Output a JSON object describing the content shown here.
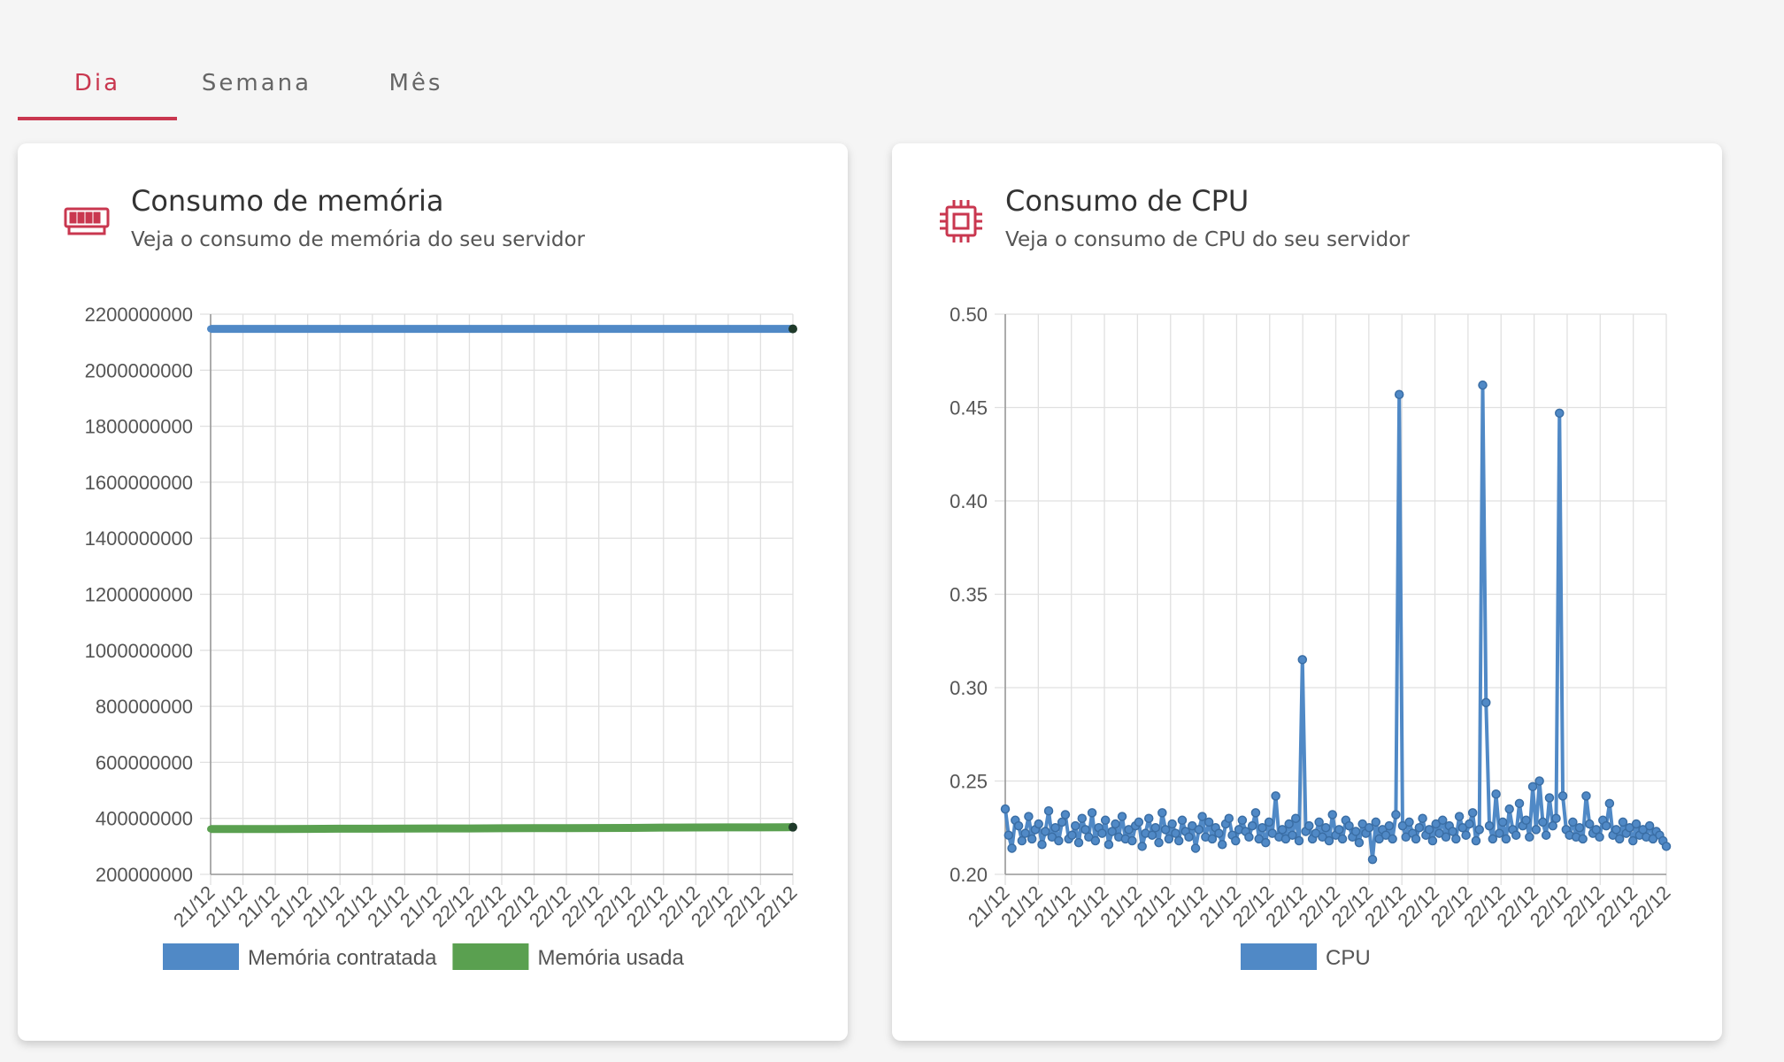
{
  "tabs": [
    {
      "label": "Dia",
      "active": true
    },
    {
      "label": "Semana",
      "active": false
    },
    {
      "label": "Mês",
      "active": false
    }
  ],
  "accent_color": "#c9374f",
  "memory_card": {
    "icon": "memory-ram-icon",
    "title": "Consumo de memória",
    "subtitle": "Veja o consumo de memória do seu servidor"
  },
  "cpu_card": {
    "icon": "cpu-chip-icon",
    "title": "Consumo de CPU",
    "subtitle": "Veja o consumo de CPU do seu servidor"
  },
  "chart_data": [
    {
      "type": "line",
      "title": "",
      "xlabel": "",
      "ylabel": "",
      "ylim": [
        200000000,
        2200000000
      ],
      "yticks": [
        200000000,
        400000000,
        600000000,
        800000000,
        1000000000,
        1200000000,
        1400000000,
        1600000000,
        1800000000,
        2000000000,
        2200000000
      ],
      "x_tick_labels": [
        "21/12",
        "21/12",
        "21/12",
        "21/12",
        "21/12",
        "21/12",
        "21/12",
        "21/12",
        "22/12",
        "22/12",
        "22/12",
        "22/12",
        "22/12",
        "22/12",
        "22/12",
        "22/12",
        "22/12",
        "22/12",
        "22/12"
      ],
      "grid": true,
      "legend": "bottom",
      "series": [
        {
          "name": "Memória contratada",
          "color": "#5089c6",
          "values": [
            2147483648,
            2147483648,
            2147483648,
            2147483648,
            2147483648,
            2147483648,
            2147483648,
            2147483648,
            2147483648,
            2147483648,
            2147483648,
            2147483648,
            2147483648,
            2147483648,
            2147483648,
            2147483648,
            2147483648,
            2147483648,
            2147483648
          ]
        },
        {
          "name": "Memória usada",
          "color": "#5aa050",
          "values": [
            362000000,
            362000000,
            362000000,
            362500000,
            363000000,
            363000000,
            363500000,
            364000000,
            364000000,
            364500000,
            365000000,
            365000000,
            365500000,
            366000000,
            367000000,
            367500000,
            368000000,
            368000000,
            368500000
          ]
        }
      ]
    },
    {
      "type": "line",
      "title": "",
      "xlabel": "",
      "ylabel": "",
      "ylim": [
        0.2,
        0.5
      ],
      "yticks": [
        0.2,
        0.25,
        0.3,
        0.35,
        0.4,
        0.45,
        0.5
      ],
      "x_tick_labels": [
        "21/12",
        "21/12",
        "21/12",
        "21/12",
        "21/12",
        "21/12",
        "21/12",
        "21/12",
        "22/12",
        "22/12",
        "22/12",
        "22/12",
        "22/12",
        "22/12",
        "22/12",
        "22/12",
        "22/12",
        "22/12",
        "22/12",
        "22/12",
        "22/12"
      ],
      "grid": true,
      "legend": "bottom",
      "series": [
        {
          "name": "CPU",
          "color": "#5089c6",
          "values": [
            0.235,
            0.221,
            0.214,
            0.229,
            0.226,
            0.218,
            0.222,
            0.231,
            0.219,
            0.224,
            0.227,
            0.216,
            0.223,
            0.234,
            0.22,
            0.225,
            0.218,
            0.228,
            0.232,
            0.219,
            0.221,
            0.226,
            0.217,
            0.23,
            0.224,
            0.22,
            0.233,
            0.218,
            0.225,
            0.222,
            0.229,
            0.216,
            0.223,
            0.227,
            0.22,
            0.231,
            0.219,
            0.224,
            0.218,
            0.226,
            0.228,
            0.215,
            0.222,
            0.23,
            0.221,
            0.225,
            0.217,
            0.233,
            0.224,
            0.219,
            0.227,
            0.222,
            0.218,
            0.229,
            0.223,
            0.22,
            0.226,
            0.214,
            0.224,
            0.231,
            0.22,
            0.228,
            0.219,
            0.225,
            0.222,
            0.216,
            0.227,
            0.23,
            0.221,
            0.218,
            0.224,
            0.229,
            0.223,
            0.22,
            0.226,
            0.233,
            0.219,
            0.225,
            0.217,
            0.228,
            0.222,
            0.242,
            0.22,
            0.224,
            0.219,
            0.227,
            0.221,
            0.23,
            0.218,
            0.315,
            0.223,
            0.226,
            0.219,
            0.222,
            0.228,
            0.22,
            0.225,
            0.218,
            0.232,
            0.221,
            0.224,
            0.219,
            0.229,
            0.226,
            0.22,
            0.223,
            0.217,
            0.227,
            0.222,
            0.225,
            0.208,
            0.228,
            0.219,
            0.224,
            0.221,
            0.226,
            0.219,
            0.232,
            0.457,
            0.226,
            0.22,
            0.228,
            0.222,
            0.219,
            0.225,
            0.23,
            0.221,
            0.224,
            0.218,
            0.227,
            0.222,
            0.229,
            0.22,
            0.226,
            0.223,
            0.219,
            0.231,
            0.225,
            0.221,
            0.227,
            0.233,
            0.218,
            0.224,
            0.462,
            0.292,
            0.226,
            0.219,
            0.243,
            0.222,
            0.228,
            0.219,
            0.235,
            0.224,
            0.221,
            0.238,
            0.226,
            0.229,
            0.22,
            0.247,
            0.224,
            0.25,
            0.228,
            0.221,
            0.241,
            0.226,
            0.23,
            0.447,
            0.242,
            0.224,
            0.221,
            0.228,
            0.22,
            0.225,
            0.219,
            0.242,
            0.227,
            0.222,
            0.224,
            0.22,
            0.229,
            0.226,
            0.238,
            0.221,
            0.224,
            0.219,
            0.228,
            0.222,
            0.225,
            0.218,
            0.227,
            0.221,
            0.224,
            0.22,
            0.226,
            0.219,
            0.223,
            0.221,
            0.218,
            0.215
          ]
        }
      ]
    }
  ]
}
